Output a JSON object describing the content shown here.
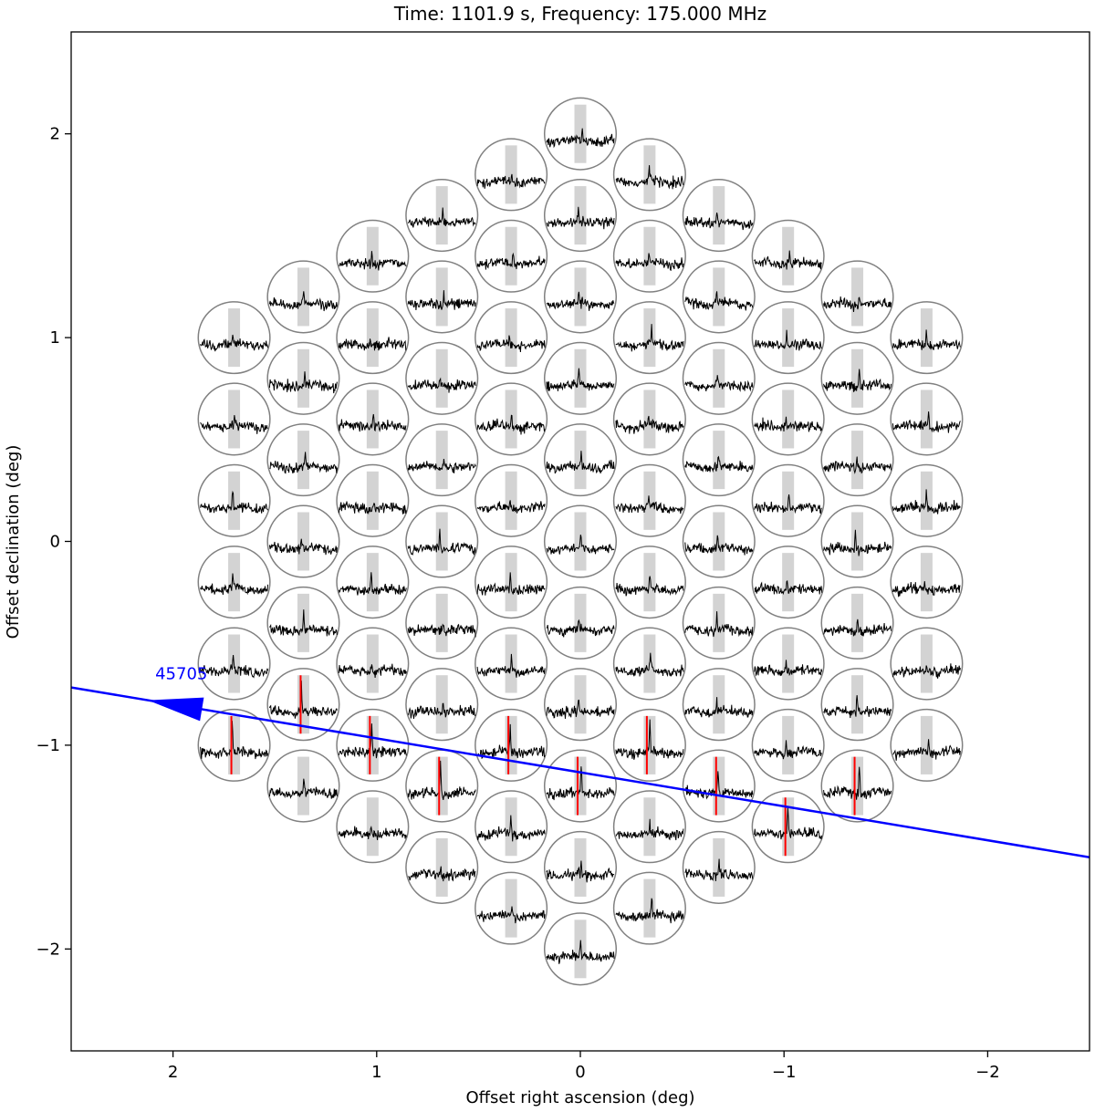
{
  "chart_data": {
    "type": "scatter",
    "title": "Time: 1101.9 s, Frequency: 175.000 MHz",
    "xlabel": "Offset right ascension (deg)",
    "ylabel": "Offset declination (deg)",
    "xlim": [
      2.5,
      -2.5
    ],
    "ylim": [
      -2.5,
      2.5
    ],
    "x_inverted": true,
    "grid": false,
    "x_ticks": [
      2,
      1,
      0,
      -1,
      -2
    ],
    "x_tick_labels": [
      "2",
      "1",
      "0",
      "−1",
      "−2"
    ],
    "y_ticks": [
      2,
      1,
      0,
      -1,
      -2
    ],
    "y_tick_labels": [
      "2",
      "1",
      "0",
      "−1",
      "−2"
    ],
    "beams": {
      "layout": "hexagonal",
      "rings": 5,
      "count": 91,
      "radius_deg": 0.176,
      "ra_spacing_deg": 0.34,
      "dec_spacing_deg": 0.2
    },
    "detected_beams": [
      {
        "ra": 1.7,
        "dec": -1.0
      },
      {
        "ra": 1.36,
        "dec": -0.8
      },
      {
        "ra": 1.02,
        "dec": -1.0
      },
      {
        "ra": 0.68,
        "dec": -1.2
      },
      {
        "ra": 0.34,
        "dec": -1.0
      },
      {
        "ra": 0.0,
        "dec": -1.2
      },
      {
        "ra": -0.34,
        "dec": -1.0
      },
      {
        "ra": -0.68,
        "dec": -1.2
      },
      {
        "ra": -1.02,
        "dec": -1.4
      },
      {
        "ra": -1.36,
        "dec": -1.2
      }
    ],
    "track": {
      "label": "45705",
      "start": [
        2.3,
        -0.75
      ],
      "end": [
        -2.5,
        -1.55
      ],
      "arrow_direction": "toward-positive-ra"
    },
    "colors": {
      "beam_outline": "#808080",
      "pulse_window": "#d3d3d3",
      "trace": "#000000",
      "detection_marker": "#ff0000",
      "track": "#0000ff",
      "axes": "#000000"
    }
  }
}
